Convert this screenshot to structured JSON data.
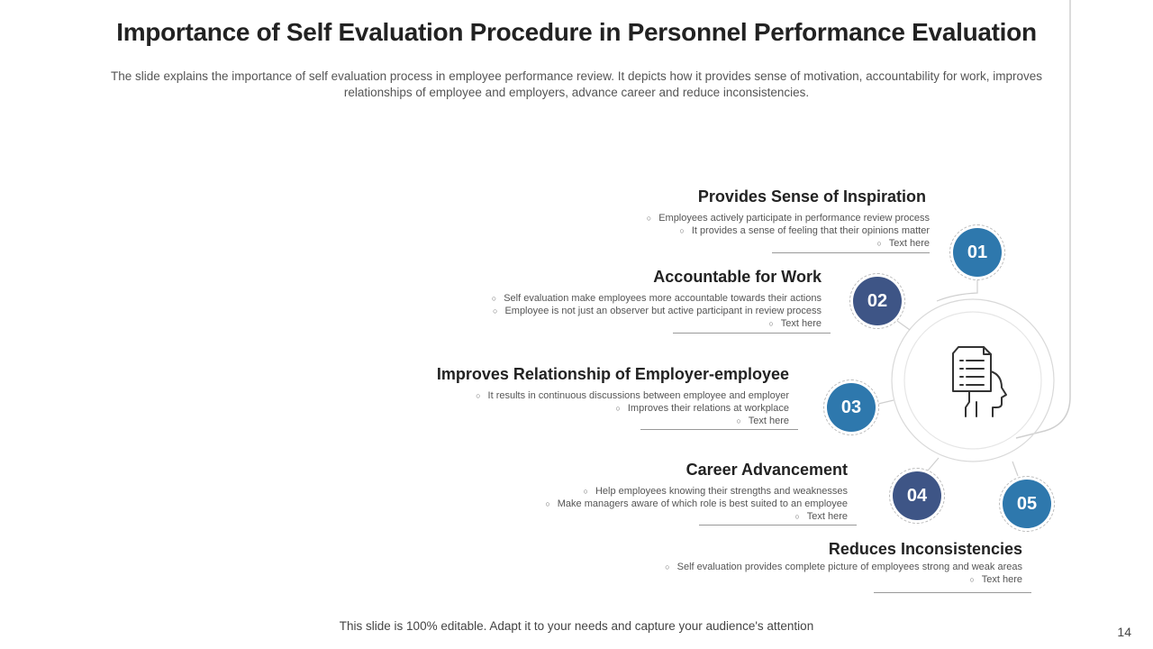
{
  "slide": {
    "title": "Importance of Self Evaluation Procedure in Personnel Performance Evaluation",
    "subtitle": "The slide explains the importance of self evaluation process in employee performance review. It depicts how it provides sense of motivation, accountability for work, improves relationships of employee and employers, advance career and reduce inconsistencies.",
    "footer": "This slide is 100% editable. Adapt it to your needs and capture your audience's attention",
    "page_number": "14"
  },
  "colors": {
    "blue": "#2e78ad",
    "navy": "#3e5586"
  },
  "center_icon": "document-head-icon",
  "items": [
    {
      "number": "01",
      "heading": "Provides Sense of Inspiration",
      "bullets": [
        "Employees actively participate in performance review process",
        "It provides a sense of feeling that their opinions matter",
        "Text here"
      ]
    },
    {
      "number": "02",
      "heading": "Accountable for Work",
      "bullets": [
        "Self evaluation make employees more accountable towards their actions",
        "Employee is not just an observer but active participant in review process",
        "Text here"
      ]
    },
    {
      "number": "03",
      "heading": "Improves Relationship of Employer-employee",
      "bullets": [
        "It results in continuous discussions between employee and employer",
        "Improves their relations at workplace",
        "Text here"
      ]
    },
    {
      "number": "04",
      "heading": "Career Advancement",
      "bullets": [
        "Help employees knowing their strengths and weaknesses",
        "Make managers aware of which role is best suited to an employee",
        "Text here"
      ]
    },
    {
      "number": "05",
      "heading": "Reduces Inconsistencies",
      "bullets": [
        "Self evaluation provides complete picture of employees strong and weak areas",
        "Text here"
      ]
    }
  ]
}
